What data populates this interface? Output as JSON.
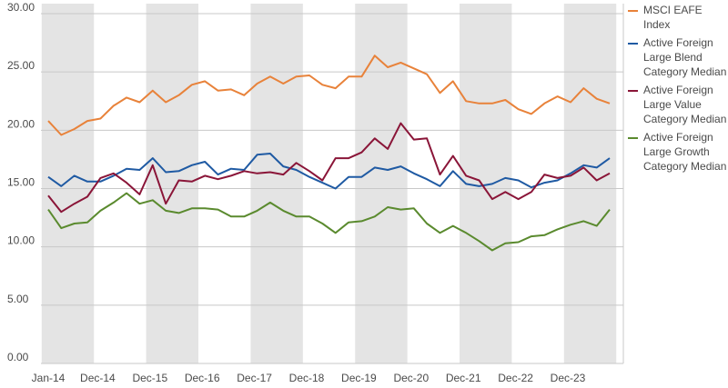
{
  "chart_data": {
    "type": "line",
    "x_tick_labels": [
      "Jan-14",
      "Dec-14",
      "Dec-15",
      "Dec-16",
      "Dec-17",
      "Dec-18",
      "Dec-19",
      "Dec-20",
      "Dec-21",
      "Dec-22",
      "Dec-23"
    ],
    "y_tick_labels": [
      "0.00",
      "5.00",
      "10.00",
      "15.00",
      "20.00",
      "25.00",
      "30.00"
    ],
    "ylim": [
      0,
      30
    ],
    "grid": true,
    "shaded_bands": [
      [
        0,
        4
      ],
      [
        8,
        12
      ],
      [
        16,
        20
      ],
      [
        24,
        28
      ],
      [
        32,
        36
      ],
      [
        40,
        44
      ]
    ],
    "legend_position": "right",
    "series": [
      {
        "name": "MSCI EAFE Index",
        "color": "#e8823a",
        "values": [
          20.8,
          19.6,
          20.1,
          20.8,
          21.0,
          22.1,
          22.8,
          22.4,
          23.4,
          22.4,
          23.0,
          23.9,
          24.2,
          23.4,
          23.5,
          23.0,
          24.0,
          24.6,
          24.0,
          24.6,
          24.7,
          23.9,
          23.6,
          24.6,
          24.6,
          26.4,
          25.4,
          25.8,
          25.3,
          24.8,
          23.2,
          24.2,
          22.5,
          22.3,
          22.3,
          22.6,
          21.8,
          21.4,
          22.3,
          22.9,
          22.4,
          23.6,
          22.7,
          22.3
        ]
      },
      {
        "name": "Active Foreign Large Blend Category Median",
        "color": "#1f5aa3",
        "values": [
          16.0,
          15.2,
          16.1,
          15.6,
          15.6,
          16.1,
          16.7,
          16.6,
          17.6,
          16.4,
          16.5,
          17.0,
          17.3,
          16.2,
          16.7,
          16.6,
          17.9,
          18.0,
          16.9,
          16.6,
          16.0,
          15.5,
          15.0,
          16.0,
          16.0,
          16.8,
          16.6,
          16.9,
          16.3,
          15.8,
          15.2,
          16.5,
          15.4,
          15.2,
          15.4,
          15.9,
          15.7,
          15.1,
          15.5,
          15.7,
          16.3,
          17.0,
          16.8,
          17.6
        ]
      },
      {
        "name": "Active Foreign Large Value Category Median",
        "color": "#8a1538",
        "values": [
          14.4,
          13.0,
          13.7,
          14.3,
          15.9,
          16.3,
          15.5,
          14.5,
          17.0,
          13.7,
          15.7,
          15.6,
          16.1,
          15.8,
          16.1,
          16.5,
          16.3,
          16.4,
          16.2,
          17.2,
          16.5,
          15.7,
          17.6,
          17.6,
          18.1,
          19.3,
          18.4,
          20.6,
          19.2,
          19.3,
          16.2,
          17.8,
          16.1,
          15.7,
          14.1,
          14.7,
          14.1,
          14.7,
          16.2,
          15.9,
          16.1,
          16.8,
          15.7,
          16.3
        ]
      },
      {
        "name": "Active Foreign Large Growth Category Median",
        "color": "#5a8a2e",
        "values": [
          13.2,
          11.6,
          12.0,
          12.1,
          13.1,
          13.8,
          14.6,
          13.7,
          14.0,
          13.1,
          12.9,
          13.3,
          13.3,
          13.2,
          12.6,
          12.6,
          13.1,
          13.8,
          13.1,
          12.6,
          12.6,
          12.0,
          11.2,
          12.1,
          12.2,
          12.6,
          13.4,
          13.2,
          13.3,
          12.0,
          11.2,
          11.8,
          11.2,
          10.5,
          9.7,
          10.3,
          10.4,
          10.9,
          11.0,
          11.5,
          11.9,
          12.2,
          11.8,
          13.2
        ]
      }
    ]
  }
}
